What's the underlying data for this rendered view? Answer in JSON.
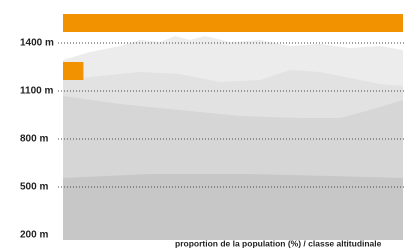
{
  "chart_data": {
    "type": "hbar",
    "x_label": "proportion de la population (%) / classe altitudinale",
    "categories": [
      1400,
      1100
    ],
    "values": [
      100,
      6
    ],
    "color": "#f39200",
    "xlim": [
      0,
      100
    ],
    "ylim": [
      200,
      1700
    ],
    "yticks": [
      {
        "value": 200,
        "label": "200 m"
      },
      {
        "value": 500,
        "label": "500 m"
      },
      {
        "value": 800,
        "label": "800 m"
      },
      {
        "value": 1100,
        "label": "1100 m"
      },
      {
        "value": 1400,
        "label": "1400 m"
      }
    ],
    "grid": true
  }
}
